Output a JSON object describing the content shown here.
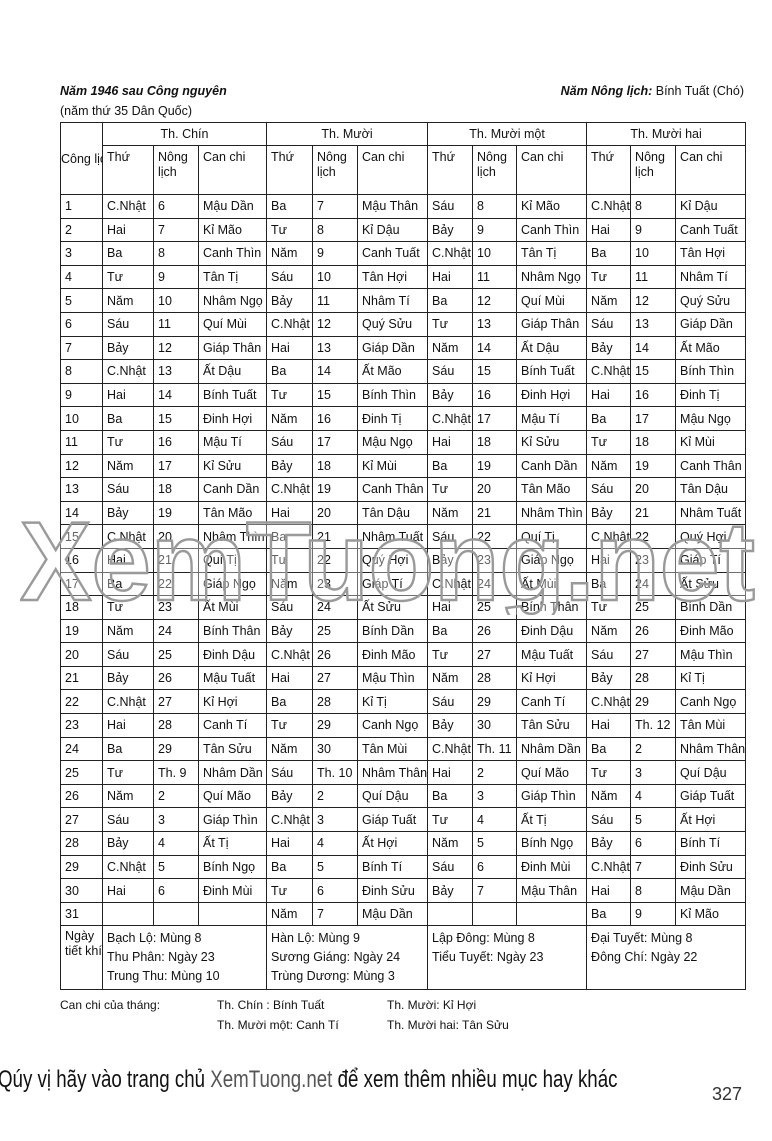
{
  "header": {
    "left_title": "Năm 1946 sau Công nguyên",
    "left_sub": "(năm thứ  35 Dân Quốc)",
    "right_label": "Năm Nông lịch:",
    "right_value": "Bính Tuất (Chó)"
  },
  "table": {
    "col_first": "Công lịch",
    "months": [
      "Th. Chín",
      "Th. Mười",
      "Th. Mười một",
      "Th. Mười hai"
    ],
    "sub_headers": [
      "Thứ",
      "Nông lịch",
      "Can chi"
    ],
    "rows": [
      [
        "1",
        "C.Nhật",
        "6",
        "Mậu Dần",
        "Ba",
        "7",
        "Mậu Thân",
        "Sáu",
        "8",
        "Kỉ Mão",
        "C.Nhật",
        "8",
        "Kỉ Dậu"
      ],
      [
        "2",
        "Hai",
        "7",
        "Kỉ Mão",
        "Tư",
        "8",
        "Kỉ Dậu",
        "Bảy",
        "9",
        "Canh Thìn",
        "Hai",
        "9",
        "Canh Tuất"
      ],
      [
        "3",
        "Ba",
        "8",
        "Canh Thìn",
        "Năm",
        "9",
        "Canh Tuất",
        "C.Nhật",
        "10",
        "Tân Tị",
        "Ba",
        "10",
        "Tân Hợi"
      ],
      [
        "4",
        "Tư",
        "9",
        "Tân Tị",
        "Sáu",
        "10",
        "Tân Hợi",
        "Hai",
        "11",
        "Nhâm Ngọ",
        "Tư",
        "11",
        "Nhâm Tí"
      ],
      [
        "5",
        "Năm",
        "10",
        "Nhâm Ngọ",
        "Bảy",
        "11",
        "Nhâm Tí",
        "Ba",
        "12",
        "Quí Mùi",
        "Năm",
        "12",
        "Quý Sửu"
      ],
      [
        "6",
        "Sáu",
        "11",
        "Quí Mùi",
        "C.Nhật",
        "12",
        "Quý Sửu",
        "Tư",
        "13",
        "Giáp Thân",
        "Sáu",
        "13",
        "Giáp Dần"
      ],
      [
        "7",
        "Bảy",
        "12",
        "Giáp Thân",
        "Hai",
        "13",
        "Giáp Dần",
        "Năm",
        "14",
        "Ất Dậu",
        "Bảy",
        "14",
        "Ất Mão"
      ],
      [
        "8",
        "C.Nhật",
        "13",
        "Ất Dậu",
        "Ba",
        "14",
        "Ất Mão",
        "Sáu",
        "15",
        "Bính Tuất",
        "C.Nhật",
        "15",
        "Bính Thìn"
      ],
      [
        "9",
        "Hai",
        "14",
        "Bính Tuất",
        "Tư",
        "15",
        "Bính Thìn",
        "Bảy",
        "16",
        "Đinh Hợi",
        "Hai",
        "16",
        "Đinh Tị"
      ],
      [
        "10",
        "Ba",
        "15",
        "Đinh Hợi",
        "Năm",
        "16",
        "Đinh Tị",
        "C.Nhật",
        "17",
        "Mậu Tí",
        "Ba",
        "17",
        "Mậu Ngọ"
      ],
      [
        "11",
        "Tư",
        "16",
        "Mậu Tí",
        "Sáu",
        "17",
        "Mậu Ngọ",
        "Hai",
        "18",
        "Kỉ Sửu",
        "Tư",
        "18",
        "Kỉ Mùi"
      ],
      [
        "12",
        "Năm",
        "17",
        "Kỉ Sửu",
        "Bảy",
        "18",
        "Kỉ Mùi",
        "Ba",
        "19",
        "Canh Dần",
        "Năm",
        "19",
        "Canh Thân"
      ],
      [
        "13",
        "Sáu",
        "18",
        "Canh Dần",
        "C.Nhật",
        "19",
        "Canh Thân",
        "Tư",
        "20",
        "Tân Mão",
        "Sáu",
        "20",
        "Tân Dậu"
      ],
      [
        "14",
        "Bảy",
        "19",
        "Tân Mão",
        "Hai",
        "20",
        "Tân Dậu",
        "Năm",
        "21",
        "Nhâm Thìn",
        "Bảy",
        "21",
        "Nhâm Tuất"
      ],
      [
        "15",
        "C.Nhật",
        "20",
        "Nhâm Thìn",
        "Ba",
        "21",
        "Nhâm Tuất",
        "Sáu",
        "22",
        "Quí Tị",
        "C.Nhật",
        "22",
        "Quý Hợi"
      ],
      [
        "16",
        "Hai",
        "21",
        "Quí Tị",
        "Tư",
        "22",
        "Quý Hợi",
        "Bảy",
        "23",
        "Giáp Ngọ",
        "Hai",
        "23",
        "Giáp Tí"
      ],
      [
        "17",
        "Ba",
        "22",
        "Giáp Ngọ",
        "Năm",
        "23",
        "Giáp Tí",
        "C.Nhật",
        "24",
        "Ất Mùi",
        "Ba",
        "24",
        "Ất Sửu"
      ],
      [
        "18",
        "Tư",
        "23",
        "Ất Mùi",
        "Sáu",
        "24",
        "Ất Sửu",
        "Hai",
        "25",
        "Bính Thân",
        "Tư",
        "25",
        "Bính Dần"
      ],
      [
        "19",
        "Năm",
        "24",
        "Bính Thân",
        "Bảy",
        "25",
        "Bính Dần",
        "Ba",
        "26",
        "Đinh Dậu",
        "Năm",
        "26",
        "Đinh Mão"
      ],
      [
        "20",
        "Sáu",
        "25",
        "Đinh Dậu",
        "C.Nhật",
        "26",
        "Đinh Mão",
        "Tư",
        "27",
        "Mậu Tuất",
        "Sáu",
        "27",
        "Mậu Thìn"
      ],
      [
        "21",
        "Bảy",
        "26",
        "Mậu Tuất",
        "Hai",
        "27",
        "Mậu Thìn",
        "Năm",
        "28",
        "Kỉ Hợi",
        "Bảy",
        "28",
        "Kỉ Tị"
      ],
      [
        "22",
        "C.Nhật",
        "27",
        "Kỉ Hợi",
        "Ba",
        "28",
        "Kỉ Tị",
        "Sáu",
        "29",
        "Canh Tí",
        "C.Nhật",
        "29",
        "Canh Ngọ"
      ],
      [
        "23",
        "Hai",
        "28",
        "Canh Tí",
        "Tư",
        "29",
        "Canh Ngọ",
        "Bảy",
        "30",
        "Tân Sửu",
        "Hai",
        "Th. 12",
        "Tân Mùi"
      ],
      [
        "24",
        "Ba",
        "29",
        "Tân Sửu",
        "Năm",
        "30",
        "Tân Mùi",
        "C.Nhật",
        "Th.  11",
        "Nhâm Dần",
        "Ba",
        "2",
        "Nhâm Thân"
      ],
      [
        "25",
        "Tư",
        "Th.  9",
        "Nhâm Dần",
        "Sáu",
        "Th. 10",
        "Nhâm Thân",
        "Hai",
        "2",
        "Quí Mão",
        "Tư",
        "3",
        "Quí Dậu"
      ],
      [
        "26",
        "Năm",
        "2",
        "Quí Mão",
        "Bảy",
        "2",
        "Quí Dậu",
        "Ba",
        "3",
        "Giáp Thìn",
        "Năm",
        "4",
        "Giáp Tuất"
      ],
      [
        "27",
        "Sáu",
        "3",
        "Giáp Thìn",
        "C.Nhật",
        "3",
        "Giáp Tuất",
        "Tư",
        "4",
        "Ất Tị",
        "Sáu",
        "5",
        "Ất Hợi"
      ],
      [
        "28",
        "Bảy",
        "4",
        "Ất Tị",
        "Hai",
        "4",
        "Ất Hợi",
        "Năm",
        "5",
        "Bính Ngọ",
        "Bảy",
        "6",
        "Bính Tí"
      ],
      [
        "29",
        "C.Nhật",
        "5",
        "Bính Ngọ",
        "Ba",
        "5",
        "Bính Tí",
        "Sáu",
        "6",
        "Đinh Mùi",
        "C.Nhật",
        "7",
        "Đinh Sửu"
      ],
      [
        "30",
        "Hai",
        "6",
        "Đinh Mùi",
        "Tư",
        "6",
        "Đinh Sửu",
        "Bảy",
        "7",
        "Mậu Thân",
        "Hai",
        "8",
        "Mậu Dần"
      ],
      [
        "31",
        "",
        "",
        "",
        "Năm",
        "7",
        "Mậu Dần",
        "",
        "",
        "",
        "Ba",
        "9",
        "Kỉ Mão"
      ]
    ],
    "tiet_khi_label": "Ngày tiết khí",
    "tiet_khi": [
      [
        "Bạch Lộ: Mùng 8",
        "Thu Phân: Ngày 23",
        "Trung Thu: Mùng 10"
      ],
      [
        "Hàn Lộ: Mùng 9",
        "Sương Giáng: Ngày 24",
        "Trùng Dương: Mùng 3"
      ],
      [
        "Lập Đông: Mùng 8",
        "Tiểu Tuyết: Ngày 23"
      ],
      [
        "Đại Tuyết: Mùng 8",
        "Đông Chí: Ngày 22"
      ]
    ]
  },
  "month_can_chi": {
    "label": "Can chi của tháng:",
    "m9": "Th. Chín : Bính Tuất",
    "m10": "Th. Mười: Kỉ Hợi",
    "m11": "Th. Mười một:  Canh Tí",
    "m12": "Th. Mười hai: Tân Sửu"
  },
  "watermark": "XemTuong.net",
  "footer": {
    "before": "Qúy vị hãy vào trang chủ ",
    "site": "XemTuong.net",
    "after": " để xem thêm nhiều mục hay khác"
  },
  "page_number": "327"
}
